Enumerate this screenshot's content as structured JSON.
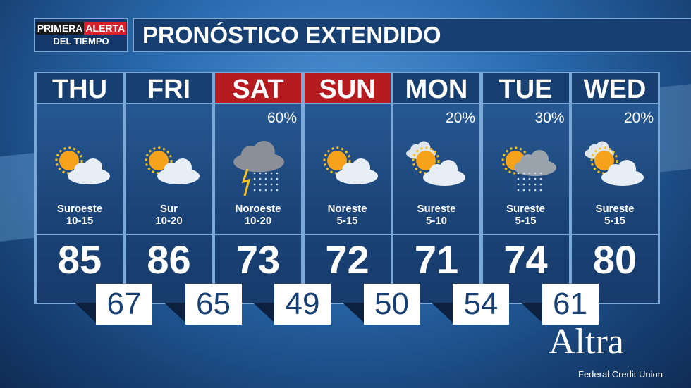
{
  "logo": {
    "line1a": "PRIMERA",
    "line1b": "ALERTA",
    "line2": "DEL TIEMPO"
  },
  "title": "PRONÓSTICO EXTENDIDO",
  "days": [
    {
      "day": "THU",
      "highlight": false,
      "precip": "",
      "icon": "partly-cloudy",
      "wind_dir": "Suroeste",
      "wind_speed": "10-15",
      "high": "85",
      "low": "67"
    },
    {
      "day": "FRI",
      "highlight": false,
      "precip": "",
      "icon": "partly-cloudy",
      "wind_dir": "Sur",
      "wind_speed": "10-20",
      "high": "86",
      "low": "65"
    },
    {
      "day": "SAT",
      "highlight": true,
      "precip": "60%",
      "icon": "thunderstorm",
      "wind_dir": "Noroeste",
      "wind_speed": "10-20",
      "high": "73",
      "low": "49"
    },
    {
      "day": "SUN",
      "highlight": true,
      "precip": "",
      "icon": "partly-cloudy",
      "wind_dir": "Noreste",
      "wind_speed": "5-15",
      "high": "72",
      "low": "50"
    },
    {
      "day": "MON",
      "highlight": false,
      "precip": "20%",
      "icon": "mostly-cloudy",
      "wind_dir": "Sureste",
      "wind_speed": "5-10",
      "high": "71",
      "low": "54"
    },
    {
      "day": "TUE",
      "highlight": false,
      "precip": "30%",
      "icon": "showers",
      "wind_dir": "Sureste",
      "wind_speed": "5-15",
      "high": "74",
      "low": "61"
    },
    {
      "day": "WED",
      "highlight": false,
      "precip": "20%",
      "icon": "mostly-cloudy",
      "wind_dir": "Sureste",
      "wind_speed": "5-15",
      "high": "80",
      "low": ""
    }
  ],
  "sponsor": {
    "name": "Altra",
    "subtitle": "Federal Credit Union"
  },
  "colors": {
    "highlight": "#b51a1e",
    "panel": "#173f72"
  }
}
